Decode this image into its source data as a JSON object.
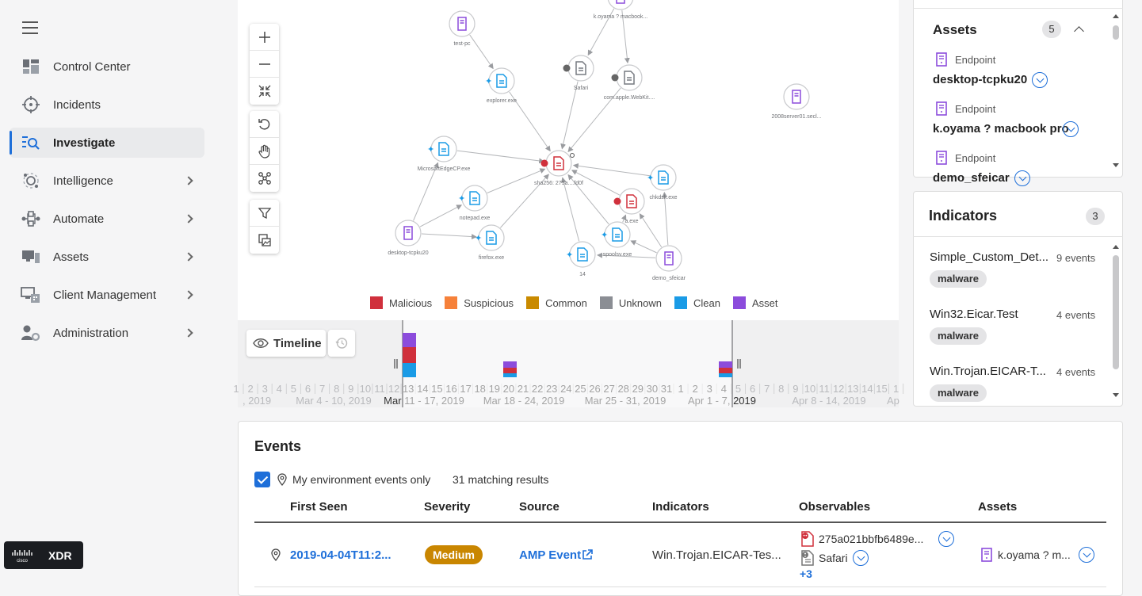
{
  "sidebar": {
    "items": [
      {
        "label": "Control Center",
        "icon": "dashboard-icon"
      },
      {
        "label": "Incidents",
        "icon": "crosshair-icon"
      },
      {
        "label": "Investigate",
        "icon": "investigate-icon"
      },
      {
        "label": "Intelligence",
        "icon": "intelligence-icon"
      },
      {
        "label": "Automate",
        "icon": "automate-icon"
      },
      {
        "label": "Assets",
        "icon": "assets-icon"
      },
      {
        "label": "Client Management",
        "icon": "client-management-icon"
      },
      {
        "label": "Administration",
        "icon": "administration-icon"
      }
    ],
    "active": "Investigate"
  },
  "brand": {
    "logo": "cisco",
    "product": "XDR"
  },
  "graph": {
    "nodes": [
      {
        "label": "test-pc",
        "kind": "asset"
      },
      {
        "label": "k.oyama ? macbook...",
        "kind": "asset"
      },
      {
        "label": "Safari",
        "kind": "unknown"
      },
      {
        "label": "com.apple.WebKit....",
        "kind": "unknown"
      },
      {
        "label": "explorer.exe",
        "kind": "clean"
      },
      {
        "label": "2008server01.secl...",
        "kind": "asset"
      },
      {
        "label": "MicrosoftEdgeCP.exe",
        "kind": "clean"
      },
      {
        "label": "sha256: 275a....fd0f",
        "kind": "malicious"
      },
      {
        "label": "chkdsk.exe",
        "kind": "clean"
      },
      {
        "label": "notepad.exe",
        "kind": "clean"
      },
      {
        "label": "a.exe",
        "kind": "malicious"
      },
      {
        "label": "desktop-tcpku20",
        "kind": "asset"
      },
      {
        "label": "firefox.exe",
        "kind": "clean"
      },
      {
        "label": "spoolsv.exe",
        "kind": "clean"
      },
      {
        "label": "14",
        "kind": "clean"
      },
      {
        "label": "demo_sfeicar",
        "kind": "asset"
      }
    ],
    "legend": [
      {
        "label": "Malicious",
        "color": "#d0303c"
      },
      {
        "label": "Suspicious",
        "color": "#f6813a"
      },
      {
        "label": "Common",
        "color": "#c98a00"
      },
      {
        "label": "Unknown",
        "color": "#8b8e94"
      },
      {
        "label": "Clean",
        "color": "#1a9be6"
      },
      {
        "label": "Asset",
        "color": "#8c4cdc"
      }
    ]
  },
  "timeline": {
    "button_label": "Timeline",
    "days": [
      "1",
      "2",
      "3",
      "4",
      "5",
      "6",
      "7",
      "8",
      "9",
      "10",
      "11",
      "12",
      "13",
      "14",
      "15",
      "16",
      "17",
      "18",
      "19",
      "20",
      "21",
      "22",
      "23",
      "24",
      "25",
      "26",
      "27",
      "28",
      "29",
      "30",
      "31",
      "1",
      "2",
      "3",
      "4",
      "5",
      "6",
      "7",
      "8",
      "9",
      "10",
      "11",
      "12",
      "13",
      "14",
      "15",
      "1"
    ],
    "weeks": [
      ", 2019",
      "Mar 4 - 10, 2019",
      "Mar 11 - 17, 2019",
      "Mar 18 - 24, 2019",
      "Mar 25 - 31, 2019",
      "Apr 1 - 7, 2019",
      "Apr 8 - 14, 2019",
      "Ap"
    ]
  },
  "assets_panel": {
    "title": "Assets",
    "count": "5",
    "items": [
      {
        "type": "Endpoint",
        "name": "desktop-tcpku20"
      },
      {
        "type": "Endpoint",
        "name": "k.oyama ? macbook pro"
      },
      {
        "type": "Endpoint",
        "name": "demo_sfeicar"
      }
    ]
  },
  "indicators_panel": {
    "title": "Indicators",
    "count": "3",
    "items": [
      {
        "name": "Simple_Custom_Det...",
        "events": "9 events",
        "tag": "malware"
      },
      {
        "name": "Win32.Eicar.Test",
        "events": "4 events",
        "tag": "malware"
      },
      {
        "name": "Win.Trojan.EICAR-T...",
        "events": "4 events",
        "tag": "malware"
      }
    ]
  },
  "events": {
    "title": "Events",
    "filter_label": "My environment events only",
    "matching": "31 matching results",
    "columns": [
      "First Seen",
      "Severity",
      "Source",
      "Indicators",
      "Observables",
      "Assets"
    ],
    "rows": [
      {
        "first_seen": "2019-04-04T11:2...",
        "severity": "Medium",
        "source": "AMP Event",
        "indicators": "Win.Trojan.EICAR-Tes...",
        "observable_1": "275a021bbfb6489e...",
        "observable_2": "Safari",
        "observable_more": "+3",
        "asset": "k.oyama ? m..."
      }
    ]
  }
}
